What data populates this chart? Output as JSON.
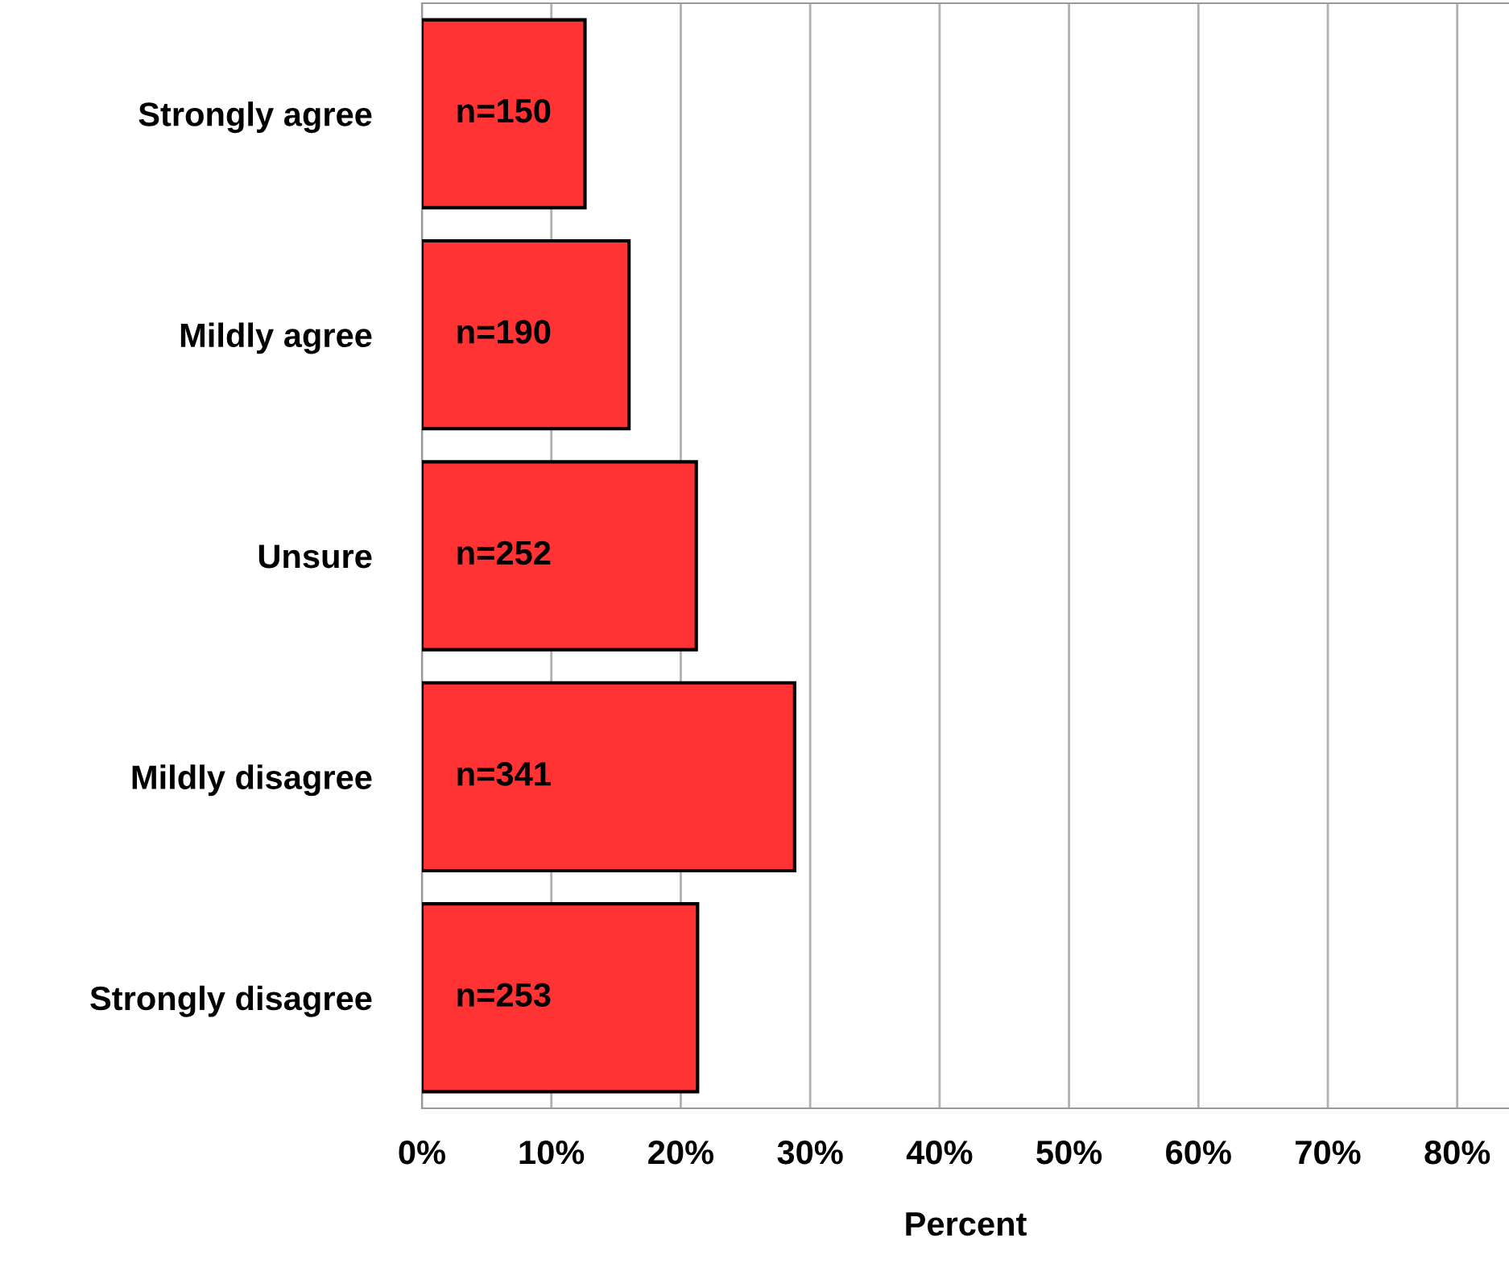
{
  "chart_data": {
    "type": "bar",
    "orientation": "horizontal",
    "xlabel": "Percent",
    "categories": [
      "Strongly agree",
      "Mildly agree",
      "Unsure",
      "Mildly disagree",
      "Strongly disagree"
    ],
    "values": [
      12.6,
      16.0,
      21.2,
      28.8,
      21.3
    ],
    "annotations": [
      "n=150",
      "n=190",
      "n=252",
      "n=341",
      "n=253"
    ],
    "color": "#ff3333",
    "xlim": [
      0,
      84
    ],
    "xticks": [
      {
        "value": 0,
        "label": "0%"
      },
      {
        "value": 10,
        "label": "10%"
      },
      {
        "value": 20,
        "label": "20%"
      },
      {
        "value": 30,
        "label": "30%"
      },
      {
        "value": 40,
        "label": "40%"
      },
      {
        "value": 50,
        "label": "50%"
      },
      {
        "value": 60,
        "label": "60%"
      },
      {
        "value": 70,
        "label": "70%"
      },
      {
        "value": 80,
        "label": "80%"
      }
    ],
    "grid": "x"
  }
}
